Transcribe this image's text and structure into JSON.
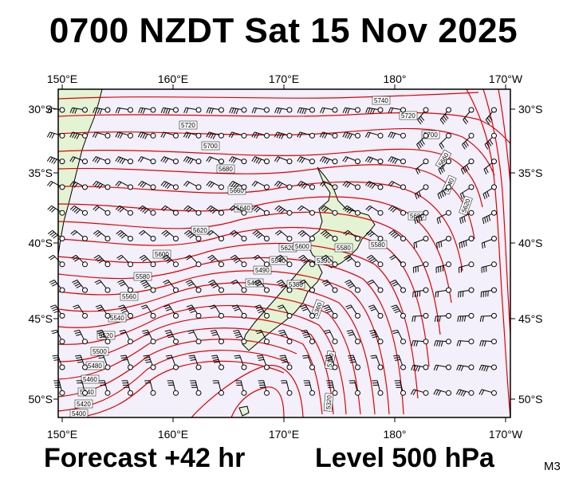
{
  "header": {
    "title": "0700 NZDT Sat 15 Nov 2025"
  },
  "footer": {
    "forecast": "Forecast +42 hr",
    "level": "Level 500 hPa",
    "model": "M3"
  },
  "axes": {
    "lon_labels": [
      "150°E",
      "160°E",
      "170°E",
      "180°",
      "170°W"
    ],
    "lat_labels": [
      "30°S",
      "35°S",
      "40°S",
      "45°S",
      "50°S"
    ]
  },
  "contour_labels": [
    "5740",
    "5720",
    "5720",
    "5700",
    "5700",
    "5680",
    "5660",
    "5640",
    "5620",
    "5600",
    "5580",
    "5560",
    "5540",
    "5520",
    "5500",
    "5480",
    "5460",
    "5440",
    "5420",
    "5400",
    "5380",
    "5360",
    "5330",
    "5320",
    "5620",
    "5600",
    "5580",
    "5540",
    "5490",
    "5460",
    "5390",
    "5580",
    "5680",
    "5660",
    "5640",
    "5620"
  ],
  "colors": {
    "contour": "#e00000",
    "ocean": "#f4f0fb",
    "land": "#e3f3d4",
    "coast": "#000000",
    "wind": "#000000"
  }
}
